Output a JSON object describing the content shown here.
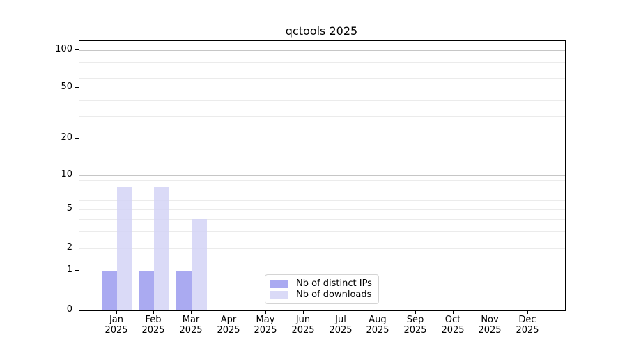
{
  "title": "qctools 2025",
  "chart_data": {
    "type": "bar",
    "title": "qctools 2025",
    "categories": [
      "Jan 2025",
      "Feb 2025",
      "Mar 2025",
      "Apr 2025",
      "May 2025",
      "Jun 2025",
      "Jul 2025",
      "Aug 2025",
      "Sep 2025",
      "Oct 2025",
      "Nov 2025",
      "Dec 2025"
    ],
    "series": [
      {
        "name": "Nb of distinct IPs",
        "color": "#9b9bef",
        "values": [
          1,
          1,
          1,
          0,
          0,
          0,
          0,
          0,
          0,
          0,
          0,
          0
        ]
      },
      {
        "name": "Nb of downloads",
        "color": "#d3d3f6",
        "values": [
          8,
          8,
          4,
          0,
          0,
          0,
          0,
          0,
          0,
          0,
          0,
          0
        ]
      }
    ],
    "yscale": "log-with-zero",
    "y_ticks": [
      100,
      50,
      20,
      10,
      5,
      2,
      1,
      0
    ],
    "ylim": [
      0,
      115
    ],
    "grid": true,
    "grid_major_values": [
      1,
      10,
      100
    ],
    "grid_minor_values": [
      2,
      3,
      4,
      5,
      6,
      7,
      8,
      9,
      20,
      30,
      40,
      50,
      60,
      70,
      80,
      90
    ],
    "legend_position": "lower center inside plot",
    "bar_colors": {
      "distinct_ips": "#9b9bef",
      "downloads": "#d3d3f6"
    }
  }
}
